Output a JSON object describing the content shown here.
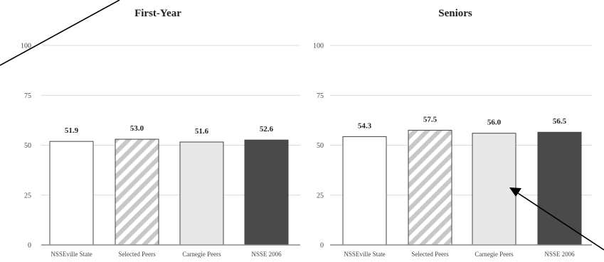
{
  "chart_data": [
    {
      "type": "bar",
      "title": "First-Year",
      "categories": [
        "NSSEville State",
        "Selected Peers",
        "Carnegie Peers",
        "NSSE 2006"
      ],
      "values": [
        51.9,
        53.0,
        51.6,
        52.6
      ],
      "value_labels": [
        "51.9",
        "53.0",
        "51.6",
        "52.6"
      ],
      "ylim": [
        0,
        100
      ],
      "yticks": [
        0,
        25,
        50,
        75,
        100
      ],
      "grid": true,
      "bar_styles": [
        "white",
        "hatched",
        "light-gray",
        "dark-gray"
      ]
    },
    {
      "type": "bar",
      "title": "Seniors",
      "categories": [
        "NSSEville State",
        "Selected Peers",
        "Carnegie Peers",
        "NSSE 2006"
      ],
      "values": [
        54.3,
        57.5,
        56.0,
        56.5
      ],
      "value_labels": [
        "54.3",
        "57.5",
        "56.0",
        "56.5"
      ],
      "ylim": [
        0,
        100
      ],
      "yticks": [
        0,
        25,
        50,
        75,
        100
      ],
      "grid": true,
      "bar_styles": [
        "white",
        "hatched",
        "light-gray",
        "dark-gray"
      ]
    }
  ],
  "colors": {
    "white": "#ffffff",
    "light-gray": "#e8e8e8",
    "dark-gray": "#4a4a4a",
    "hatch": "#c8c8c8",
    "bar_stroke": "#444444"
  }
}
